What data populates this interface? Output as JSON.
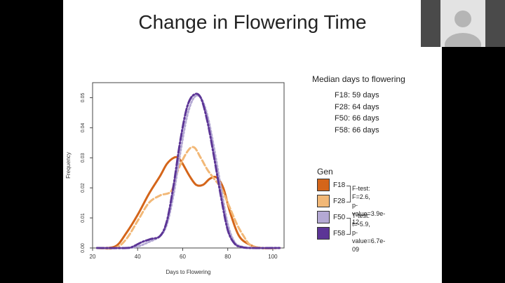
{
  "slide": {
    "title": "Change in Flowering Time"
  },
  "median": {
    "title": "Median days to flowering",
    "lines": [
      "F18: 59 days",
      "F28: 64 days",
      "F50: 66 days",
      "F58: 66 days"
    ]
  },
  "legend": {
    "title": "Gen",
    "items": [
      {
        "label": "F18",
        "color": "#d4651a"
      },
      {
        "label": "F28",
        "color": "#f2b877"
      },
      {
        "label": "F50",
        "color": "#b4a9d4"
      },
      {
        "label": "F58",
        "color": "#5c3596"
      }
    ]
  },
  "stats": {
    "ftest_line1": "F-test: F=2.6,",
    "ftest_line2": "p-value=3.9e-12",
    "ttest_line1": "T-test: t=-5.9,",
    "ttest_line2": "p-value=6.7e-09"
  },
  "chart_data": {
    "type": "line",
    "xlabel": "Days to Flowering",
    "ylabel": "Frequency",
    "xlim": [
      20,
      105
    ],
    "ylim": [
      0,
      0.055
    ],
    "xticks": [
      20,
      40,
      60,
      80,
      100
    ],
    "yticks": [
      0.0,
      0.01,
      0.02,
      0.03,
      0.04,
      0.05
    ],
    "ytick_labels": [
      "0.00",
      "0.01",
      "0.02",
      "0.03",
      "0.04",
      "0.05"
    ],
    "grid": false,
    "series": [
      {
        "name": "F18",
        "color": "#d4651a",
        "dash": "solid",
        "x": [
          22,
          30,
          35,
          40,
          45,
          50,
          53,
          56,
          58,
          60,
          63,
          66,
          69,
          72,
          75,
          78,
          81,
          85,
          90,
          95,
          103
        ],
        "y": [
          0,
          0.0005,
          0.005,
          0.011,
          0.018,
          0.024,
          0.028,
          0.03,
          0.03,
          0.028,
          0.024,
          0.021,
          0.021,
          0.023,
          0.0235,
          0.02,
          0.012,
          0.004,
          0.001,
          0,
          0
        ]
      },
      {
        "name": "F28",
        "color": "#f2b877",
        "dash": "8,4",
        "x": [
          22,
          30,
          35,
          40,
          45,
          50,
          55,
          58,
          62,
          65,
          68,
          71,
          74,
          77,
          80,
          84,
          87,
          90,
          95,
          103
        ],
        "y": [
          0,
          0,
          0.003,
          0.009,
          0.015,
          0.0175,
          0.019,
          0.026,
          0.032,
          0.0335,
          0.03,
          0.026,
          0.023,
          0.02,
          0.015,
          0.008,
          0.004,
          0.001,
          0,
          0
        ]
      },
      {
        "name": "F50",
        "color": "#b4a9d4",
        "dash": "2,3",
        "x": [
          22,
          35,
          40,
          45,
          50,
          53,
          56,
          59,
          62,
          65,
          68,
          71,
          74,
          77,
          80,
          83,
          86,
          90,
          95,
          103
        ],
        "y": [
          0,
          0,
          0.0005,
          0.002,
          0.004,
          0.008,
          0.018,
          0.032,
          0.044,
          0.05,
          0.05,
          0.044,
          0.033,
          0.02,
          0.008,
          0.002,
          0.0005,
          0,
          0,
          0
        ]
      },
      {
        "name": "F58",
        "color": "#5c3596",
        "dash": "10,3,2,3",
        "x": [
          22,
          35,
          38,
          42,
          46,
          50,
          53,
          56,
          59,
          62,
          65,
          68,
          71,
          74,
          77,
          80,
          83,
          86,
          90,
          103
        ],
        "y": [
          0,
          0,
          0.0005,
          0.002,
          0.003,
          0.004,
          0.009,
          0.021,
          0.036,
          0.047,
          0.051,
          0.05,
          0.042,
          0.03,
          0.017,
          0.006,
          0.0015,
          0.0003,
          0,
          0
        ]
      }
    ]
  }
}
